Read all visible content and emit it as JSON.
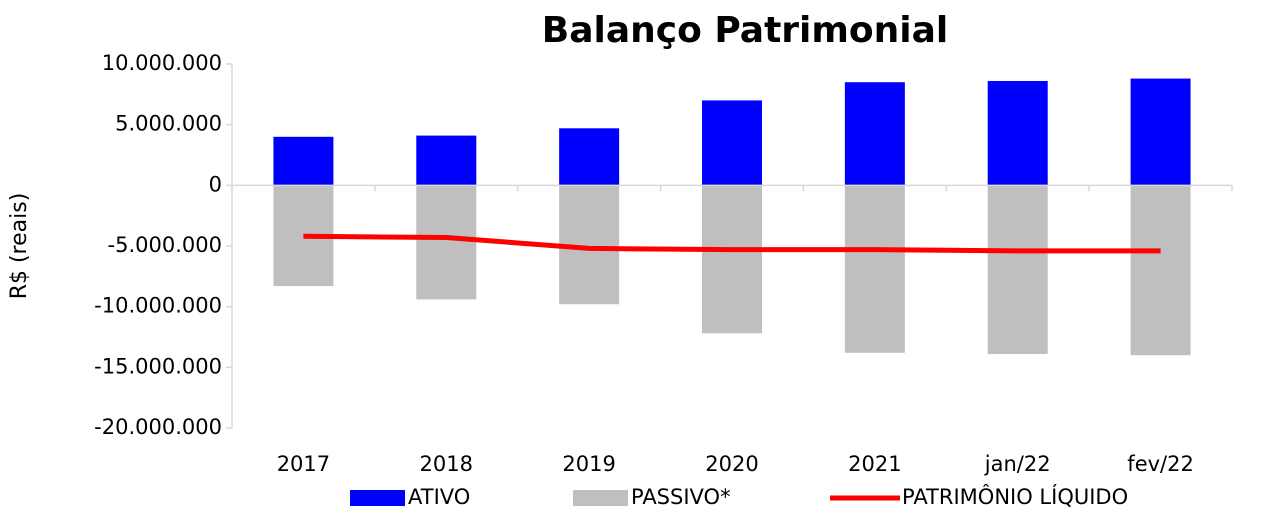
{
  "chart_data": {
    "type": "bar",
    "title": "Balanço Patrimonial",
    "y_label": "R$ (reais)",
    "categories": [
      "2017",
      "2018",
      "2019",
      "2020",
      "2021",
      "jan/22",
      "fev/22"
    ],
    "series": [
      {
        "name": "ATIVO",
        "type": "bar",
        "color": "#0000ff",
        "values": [
          4000000,
          4100000,
          4700000,
          7000000,
          8500000,
          8600000,
          8800000
        ]
      },
      {
        "name": "PASSIVO*",
        "type": "bar",
        "color": "#bfbfbf",
        "values": [
          -8300000,
          -9400000,
          -9800000,
          -12200000,
          -13800000,
          -13900000,
          -14000000
        ]
      },
      {
        "name": "PATRIMÔNIO LÍQUIDO",
        "type": "line",
        "color": "#ff0000",
        "values": [
          -4200000,
          -4300000,
          -5200000,
          -5300000,
          -5300000,
          -5400000,
          -5400000
        ]
      }
    ],
    "ylim": [
      -20000000,
      10000000
    ],
    "yticks": [
      {
        "value": -20000000,
        "label": "-20.000.000"
      },
      {
        "value": -15000000,
        "label": "-15.000.000"
      },
      {
        "value": -10000000,
        "label": "-10.000.000"
      },
      {
        "value": -5000000,
        "label": "-5.000.000"
      },
      0,
      {
        "value": 5000000,
        "label": "5.000.000"
      },
      {
        "value": 10000000,
        "label": "10.000.000"
      }
    ],
    "negative_tick_color": "#ff0000",
    "legend": "bottom"
  }
}
